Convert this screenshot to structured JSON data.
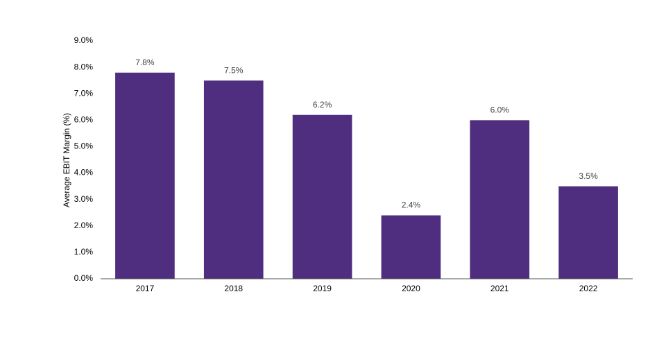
{
  "chart_data": {
    "type": "bar",
    "y_axis_label": "Average EBIT Margin (%)",
    "categories": [
      "2017",
      "2018",
      "2019",
      "2020",
      "2021",
      "2022"
    ],
    "values": [
      7.8,
      7.5,
      6.2,
      2.4,
      6.0,
      3.5
    ],
    "value_labels": [
      "7.8%",
      "7.5%",
      "6.2%",
      "2.4%",
      "6.0%",
      "3.5%"
    ],
    "color": "#4f2d7f",
    "ylim": [
      0,
      9
    ],
    "yticks": [
      {
        "value": 0,
        "label": "0.0%"
      },
      {
        "value": 1,
        "label": "1.0%"
      },
      {
        "value": 2,
        "label": "2.0%"
      },
      {
        "value": 3,
        "label": "3.0%"
      },
      {
        "value": 4,
        "label": "4.0%"
      },
      {
        "value": 5,
        "label": "5.0%"
      },
      {
        "value": 6,
        "label": "6.0%"
      },
      {
        "value": 7,
        "label": "7.0%"
      },
      {
        "value": 8,
        "label": "8.0%"
      },
      {
        "value": 9,
        "label": "9.0%"
      }
    ],
    "grid": false
  }
}
